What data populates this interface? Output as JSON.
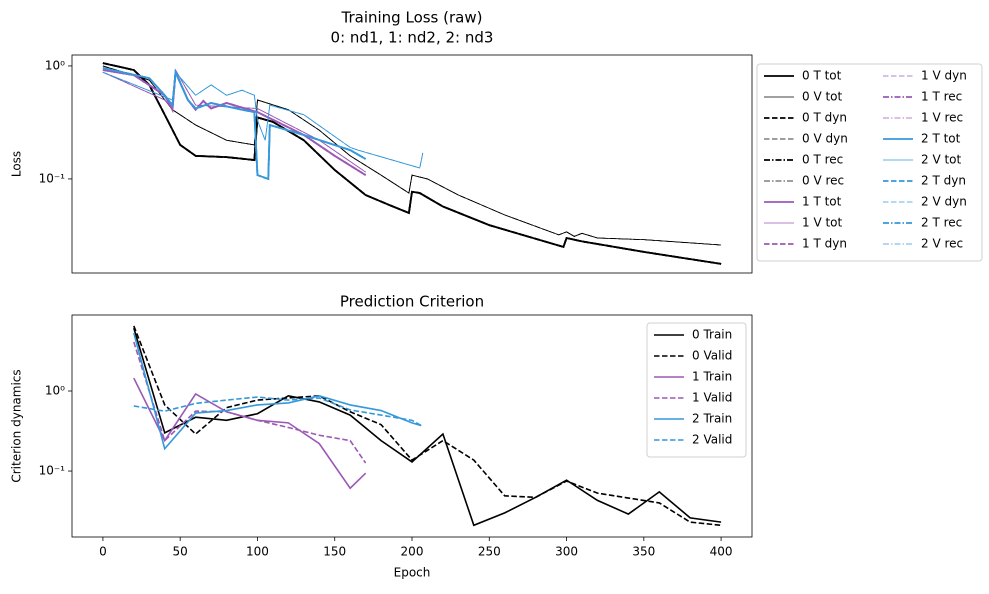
{
  "chart_data": [
    {
      "type": "line",
      "title": "Training Loss (raw)",
      "subtitle": "0: nd1, 1: nd2, 2: nd3",
      "ylabel": "Loss",
      "log_y": true,
      "xlim": [
        -20,
        420
      ],
      "ylim": [
        0.0147,
        1.25
      ],
      "yticks": [
        {
          "value": 0.1,
          "label": "10⁻¹"
        },
        {
          "value": 1,
          "label": "10⁰"
        }
      ],
      "legend": "outside right",
      "legend_columns": 2,
      "series": [
        {
          "name": "0 T tot",
          "color": "#000000",
          "width": 1.8,
          "dash": "solid",
          "x": [
            0,
            20,
            30,
            40,
            50,
            60,
            80,
            98,
            100,
            110,
            130,
            150,
            170,
            185,
            198,
            200,
            205,
            220,
            250,
            298,
            300,
            310,
            350,
            400
          ],
          "values": [
            1.06,
            0.92,
            0.68,
            0.37,
            0.2,
            0.16,
            0.156,
            0.147,
            0.35,
            0.32,
            0.22,
            0.12,
            0.072,
            0.059,
            0.05,
            0.077,
            0.075,
            0.057,
            0.039,
            0.025,
            0.03,
            0.028,
            0.0226,
            0.0177
          ]
        },
        {
          "name": "0 V tot",
          "color": "#000000",
          "width": 0.8,
          "dash": "solid",
          "x": [
            0,
            30,
            45,
            60,
            80,
            98,
            100,
            120,
            140,
            160,
            180,
            198,
            200,
            210,
            230,
            260,
            295,
            300,
            305,
            310,
            320,
            350,
            400
          ],
          "values": [
            1.0,
            0.75,
            0.41,
            0.3,
            0.22,
            0.2,
            0.5,
            0.41,
            0.27,
            0.16,
            0.108,
            0.075,
            0.108,
            0.1,
            0.072,
            0.048,
            0.032,
            0.034,
            0.031,
            0.033,
            0.03,
            0.029,
            0.026
          ]
        },
        {
          "name": "0 T dyn",
          "color": "#000000",
          "width": 1.8,
          "dash": "dashed",
          "x": [
            0,
            20,
            30,
            40,
            50,
            60,
            80,
            98,
            100,
            110,
            130,
            150,
            170,
            185,
            198,
            200,
            205,
            220,
            250,
            298,
            300,
            310,
            350,
            400
          ],
          "values": [
            1.06,
            0.92,
            0.68,
            0.37,
            0.2,
            0.16,
            0.156,
            0.147,
            0.35,
            0.32,
            0.22,
            0.12,
            0.072,
            0.059,
            0.05,
            0.077,
            0.075,
            0.057,
            0.039,
            0.025,
            0.03,
            0.028,
            0.0226,
            0.0177
          ]
        },
        {
          "name": "0 V dyn",
          "color": "#000000",
          "width": 0.8,
          "dash": "dashed",
          "x": [
            0,
            30,
            45,
            60,
            80,
            98,
            100,
            120,
            140,
            160,
            180,
            198,
            200,
            210,
            230,
            260,
            295,
            300,
            305,
            310,
            320,
            350,
            400
          ],
          "values": [
            1.0,
            0.75,
            0.41,
            0.3,
            0.22,
            0.2,
            0.5,
            0.41,
            0.27,
            0.16,
            0.108,
            0.075,
            0.108,
            0.1,
            0.072,
            0.048,
            0.032,
            0.034,
            0.031,
            0.033,
            0.03,
            0.029,
            0.026
          ]
        },
        {
          "name": "0 T rec",
          "color": "#000000",
          "width": 1.8,
          "dash": "dashdot",
          "x": [
            0,
            20,
            30,
            40,
            50,
            60,
            80,
            98,
            100,
            110,
            130,
            150,
            170,
            185,
            198,
            200,
            205,
            220,
            250,
            298,
            300,
            310,
            350,
            400
          ],
          "values": [
            1.06,
            0.92,
            0.68,
            0.37,
            0.2,
            0.16,
            0.156,
            0.147,
            0.35,
            0.32,
            0.22,
            0.12,
            0.072,
            0.059,
            0.05,
            0.077,
            0.075,
            0.057,
            0.039,
            0.025,
            0.03,
            0.028,
            0.0226,
            0.0177
          ]
        },
        {
          "name": "0 V rec",
          "color": "#000000",
          "width": 0.8,
          "dash": "dashdot",
          "x": [
            0,
            30,
            45,
            60,
            80,
            98,
            100,
            120,
            140,
            160,
            180,
            198,
            200,
            210,
            230,
            260,
            295,
            300,
            305,
            310,
            320,
            350,
            400
          ],
          "values": [
            1.0,
            0.75,
            0.41,
            0.3,
            0.22,
            0.2,
            0.5,
            0.41,
            0.27,
            0.16,
            0.108,
            0.075,
            0.108,
            0.1,
            0.072,
            0.048,
            0.032,
            0.034,
            0.031,
            0.033,
            0.03,
            0.029,
            0.026
          ]
        },
        {
          "name": "1 T tot",
          "color": "#9b59b6",
          "width": 1.8,
          "dash": "solid",
          "x": [
            0,
            20,
            40,
            45,
            47,
            55,
            60,
            65,
            70,
            80,
            100,
            130,
            150,
            170
          ],
          "values": [
            0.92,
            0.83,
            0.55,
            0.41,
            0.88,
            0.5,
            0.41,
            0.49,
            0.42,
            0.47,
            0.39,
            0.245,
            0.16,
            0.108
          ]
        },
        {
          "name": "1 V tot",
          "color": "#9b59b6",
          "width": 0.8,
          "dash": "solid",
          "x": [
            0,
            40,
            45,
            47,
            60,
            100,
            140,
            170
          ],
          "values": [
            0.88,
            0.5,
            0.42,
            0.92,
            0.45,
            0.42,
            0.22,
            0.115
          ]
        },
        {
          "name": "1 T dyn",
          "color": "#9b59b6",
          "width": 1.8,
          "dash": "dashed",
          "x": [
            0,
            20,
            40,
            45,
            47,
            55,
            60,
            65,
            70,
            80,
            100,
            130,
            150,
            170
          ],
          "values": [
            0.92,
            0.83,
            0.55,
            0.41,
            0.88,
            0.5,
            0.41,
            0.49,
            0.42,
            0.47,
            0.39,
            0.245,
            0.16,
            0.108
          ]
        },
        {
          "name": "1 V dyn",
          "color": "#9b59b6",
          "width": 0.8,
          "dash": "dashed",
          "x": [
            0,
            40,
            45,
            47,
            60,
            100,
            140,
            170
          ],
          "values": [
            0.88,
            0.5,
            0.42,
            0.92,
            0.45,
            0.42,
            0.22,
            0.115
          ]
        },
        {
          "name": "1 T rec",
          "color": "#9b59b6",
          "width": 1.8,
          "dash": "dashdot",
          "x": [
            0,
            20,
            40,
            45,
            47,
            55,
            60,
            65,
            70,
            80,
            100,
            130,
            150,
            170
          ],
          "values": [
            0.92,
            0.83,
            0.55,
            0.41,
            0.88,
            0.5,
            0.41,
            0.49,
            0.42,
            0.47,
            0.39,
            0.245,
            0.16,
            0.108
          ]
        },
        {
          "name": "1 V rec",
          "color": "#9b59b6",
          "width": 0.8,
          "dash": "dashdot",
          "x": [
            0,
            40,
            45,
            47,
            60,
            100,
            140,
            170
          ],
          "values": [
            0.88,
            0.5,
            0.42,
            0.92,
            0.45,
            0.42,
            0.22,
            0.115
          ]
        },
        {
          "name": "2 T tot",
          "color": "#3498db",
          "width": 1.8,
          "dash": "solid",
          "x": [
            0,
            30,
            40,
            45,
            47,
            55,
            60,
            70,
            90,
            98,
            100,
            107,
            108,
            130,
            160,
            170
          ],
          "values": [
            0.96,
            0.78,
            0.55,
            0.45,
            0.88,
            0.5,
            0.42,
            0.47,
            0.41,
            0.39,
            0.108,
            0.1,
            0.3,
            0.245,
            0.18,
            0.15
          ]
        },
        {
          "name": "2 V tot",
          "color": "#3498db",
          "width": 0.8,
          "dash": "solid",
          "x": [
            0,
            45,
            47,
            60,
            70,
            80,
            90,
            98,
            100,
            105,
            108,
            130,
            160,
            165,
            205,
            207
          ],
          "values": [
            0.88,
            0.5,
            0.88,
            0.55,
            0.68,
            0.55,
            0.61,
            0.55,
            0.33,
            0.22,
            0.45,
            0.37,
            0.19,
            0.18,
            0.125,
            0.17
          ]
        },
        {
          "name": "2 T dyn",
          "color": "#3498db",
          "width": 1.8,
          "dash": "dashed",
          "x": [
            0,
            30,
            40,
            45,
            47,
            55,
            60,
            70,
            90,
            98,
            100,
            107,
            108,
            130,
            160,
            170
          ],
          "values": [
            0.96,
            0.78,
            0.55,
            0.45,
            0.88,
            0.5,
            0.42,
            0.47,
            0.41,
            0.39,
            0.108,
            0.1,
            0.3,
            0.245,
            0.18,
            0.15
          ]
        },
        {
          "name": "2 V dyn",
          "color": "#3498db",
          "width": 0.8,
          "dash": "dashed",
          "x": [
            0,
            45,
            47,
            60,
            70,
            80,
            90,
            98,
            100,
            105,
            108,
            130,
            160,
            165,
            205,
            207
          ],
          "values": [
            0.88,
            0.5,
            0.88,
            0.55,
            0.68,
            0.55,
            0.61,
            0.55,
            0.33,
            0.22,
            0.45,
            0.37,
            0.19,
            0.18,
            0.125,
            0.17
          ]
        },
        {
          "name": "2 T rec",
          "color": "#3498db",
          "width": 1.8,
          "dash": "dashdot",
          "x": [
            0,
            30,
            40,
            45,
            47,
            55,
            60,
            70,
            90,
            98,
            100,
            107,
            108,
            130,
            160,
            170
          ],
          "values": [
            0.96,
            0.78,
            0.55,
            0.45,
            0.88,
            0.5,
            0.42,
            0.47,
            0.41,
            0.39,
            0.108,
            0.1,
            0.3,
            0.245,
            0.18,
            0.15
          ]
        },
        {
          "name": "2 V rec",
          "color": "#3498db",
          "width": 0.8,
          "dash": "dashdot",
          "x": [
            0,
            45,
            47,
            60,
            70,
            80,
            90,
            98,
            100,
            105,
            108,
            130,
            160,
            165,
            205,
            207
          ],
          "values": [
            0.88,
            0.5,
            0.88,
            0.55,
            0.68,
            0.55,
            0.61,
            0.55,
            0.33,
            0.22,
            0.45,
            0.37,
            0.19,
            0.18,
            0.125,
            0.17
          ]
        }
      ]
    },
    {
      "type": "line",
      "title": "Prediction Criterion",
      "xlabel": "Epoch",
      "ylabel": "Criterion dynamics",
      "log_y": true,
      "xlim": [
        -20,
        420
      ],
      "ylim": [
        0.015,
        8.9
      ],
      "xticks": [
        0,
        50,
        100,
        150,
        200,
        250,
        300,
        350,
        400
      ],
      "yticks": [
        {
          "value": 0.1,
          "label": "10⁻¹"
        },
        {
          "value": 1,
          "label": "10⁰"
        }
      ],
      "legend": "upper right",
      "legend_columns": 1,
      "series": [
        {
          "name": "0 Train",
          "color": "#000000",
          "width": 1.6,
          "dash": "solid",
          "x": [
            20,
            40,
            60,
            80,
            100,
            120,
            140,
            160,
            180,
            200,
            220,
            240,
            260,
            280,
            300,
            320,
            340,
            360,
            380,
            400
          ],
          "values": [
            6.1,
            0.3,
            0.47,
            0.43,
            0.52,
            0.87,
            0.73,
            0.5,
            0.24,
            0.13,
            0.29,
            0.021,
            0.03,
            0.047,
            0.077,
            0.043,
            0.029,
            0.055,
            0.026,
            0.023
          ]
        },
        {
          "name": "0 Valid",
          "color": "#000000",
          "width": 1.6,
          "dash": "dashed",
          "x": [
            20,
            40,
            60,
            80,
            100,
            120,
            140,
            160,
            180,
            200,
            220,
            240,
            260,
            280,
            300,
            320,
            340,
            360,
            380,
            400
          ],
          "values": [
            6.5,
            0.67,
            0.29,
            0.62,
            0.77,
            0.82,
            0.87,
            0.55,
            0.38,
            0.137,
            0.24,
            0.137,
            0.049,
            0.047,
            0.075,
            0.053,
            0.046,
            0.04,
            0.023,
            0.021
          ]
        },
        {
          "name": "1 Train",
          "color": "#9b59b6",
          "width": 1.6,
          "dash": "solid",
          "x": [
            20,
            40,
            60,
            80,
            100,
            120,
            140,
            160,
            170
          ],
          "values": [
            1.45,
            0.24,
            0.92,
            0.55,
            0.43,
            0.4,
            0.22,
            0.061,
            0.094
          ]
        },
        {
          "name": "1 Valid",
          "color": "#9b59b6",
          "width": 1.6,
          "dash": "dashed",
          "x": [
            20,
            40,
            60,
            80,
            100,
            120,
            140,
            160,
            170
          ],
          "values": [
            4.1,
            0.24,
            0.56,
            0.55,
            0.43,
            0.35,
            0.28,
            0.24,
            0.126
          ]
        },
        {
          "name": "2 Train",
          "color": "#3498db",
          "width": 1.6,
          "dash": "solid",
          "x": [
            20,
            40,
            60,
            80,
            100,
            120,
            140,
            160,
            180,
            200,
            206
          ],
          "values": [
            5.3,
            0.19,
            0.53,
            0.57,
            0.67,
            0.71,
            0.87,
            0.67,
            0.57,
            0.4,
            0.37
          ]
        },
        {
          "name": "2 Valid",
          "color": "#3498db",
          "width": 1.6,
          "dash": "dashed",
          "x": [
            20,
            40,
            60,
            80,
            100,
            120,
            140,
            160,
            180,
            200,
            206
          ],
          "values": [
            0.65,
            0.56,
            0.7,
            0.77,
            0.84,
            0.77,
            0.82,
            0.58,
            0.5,
            0.43,
            0.37
          ]
        }
      ]
    }
  ]
}
